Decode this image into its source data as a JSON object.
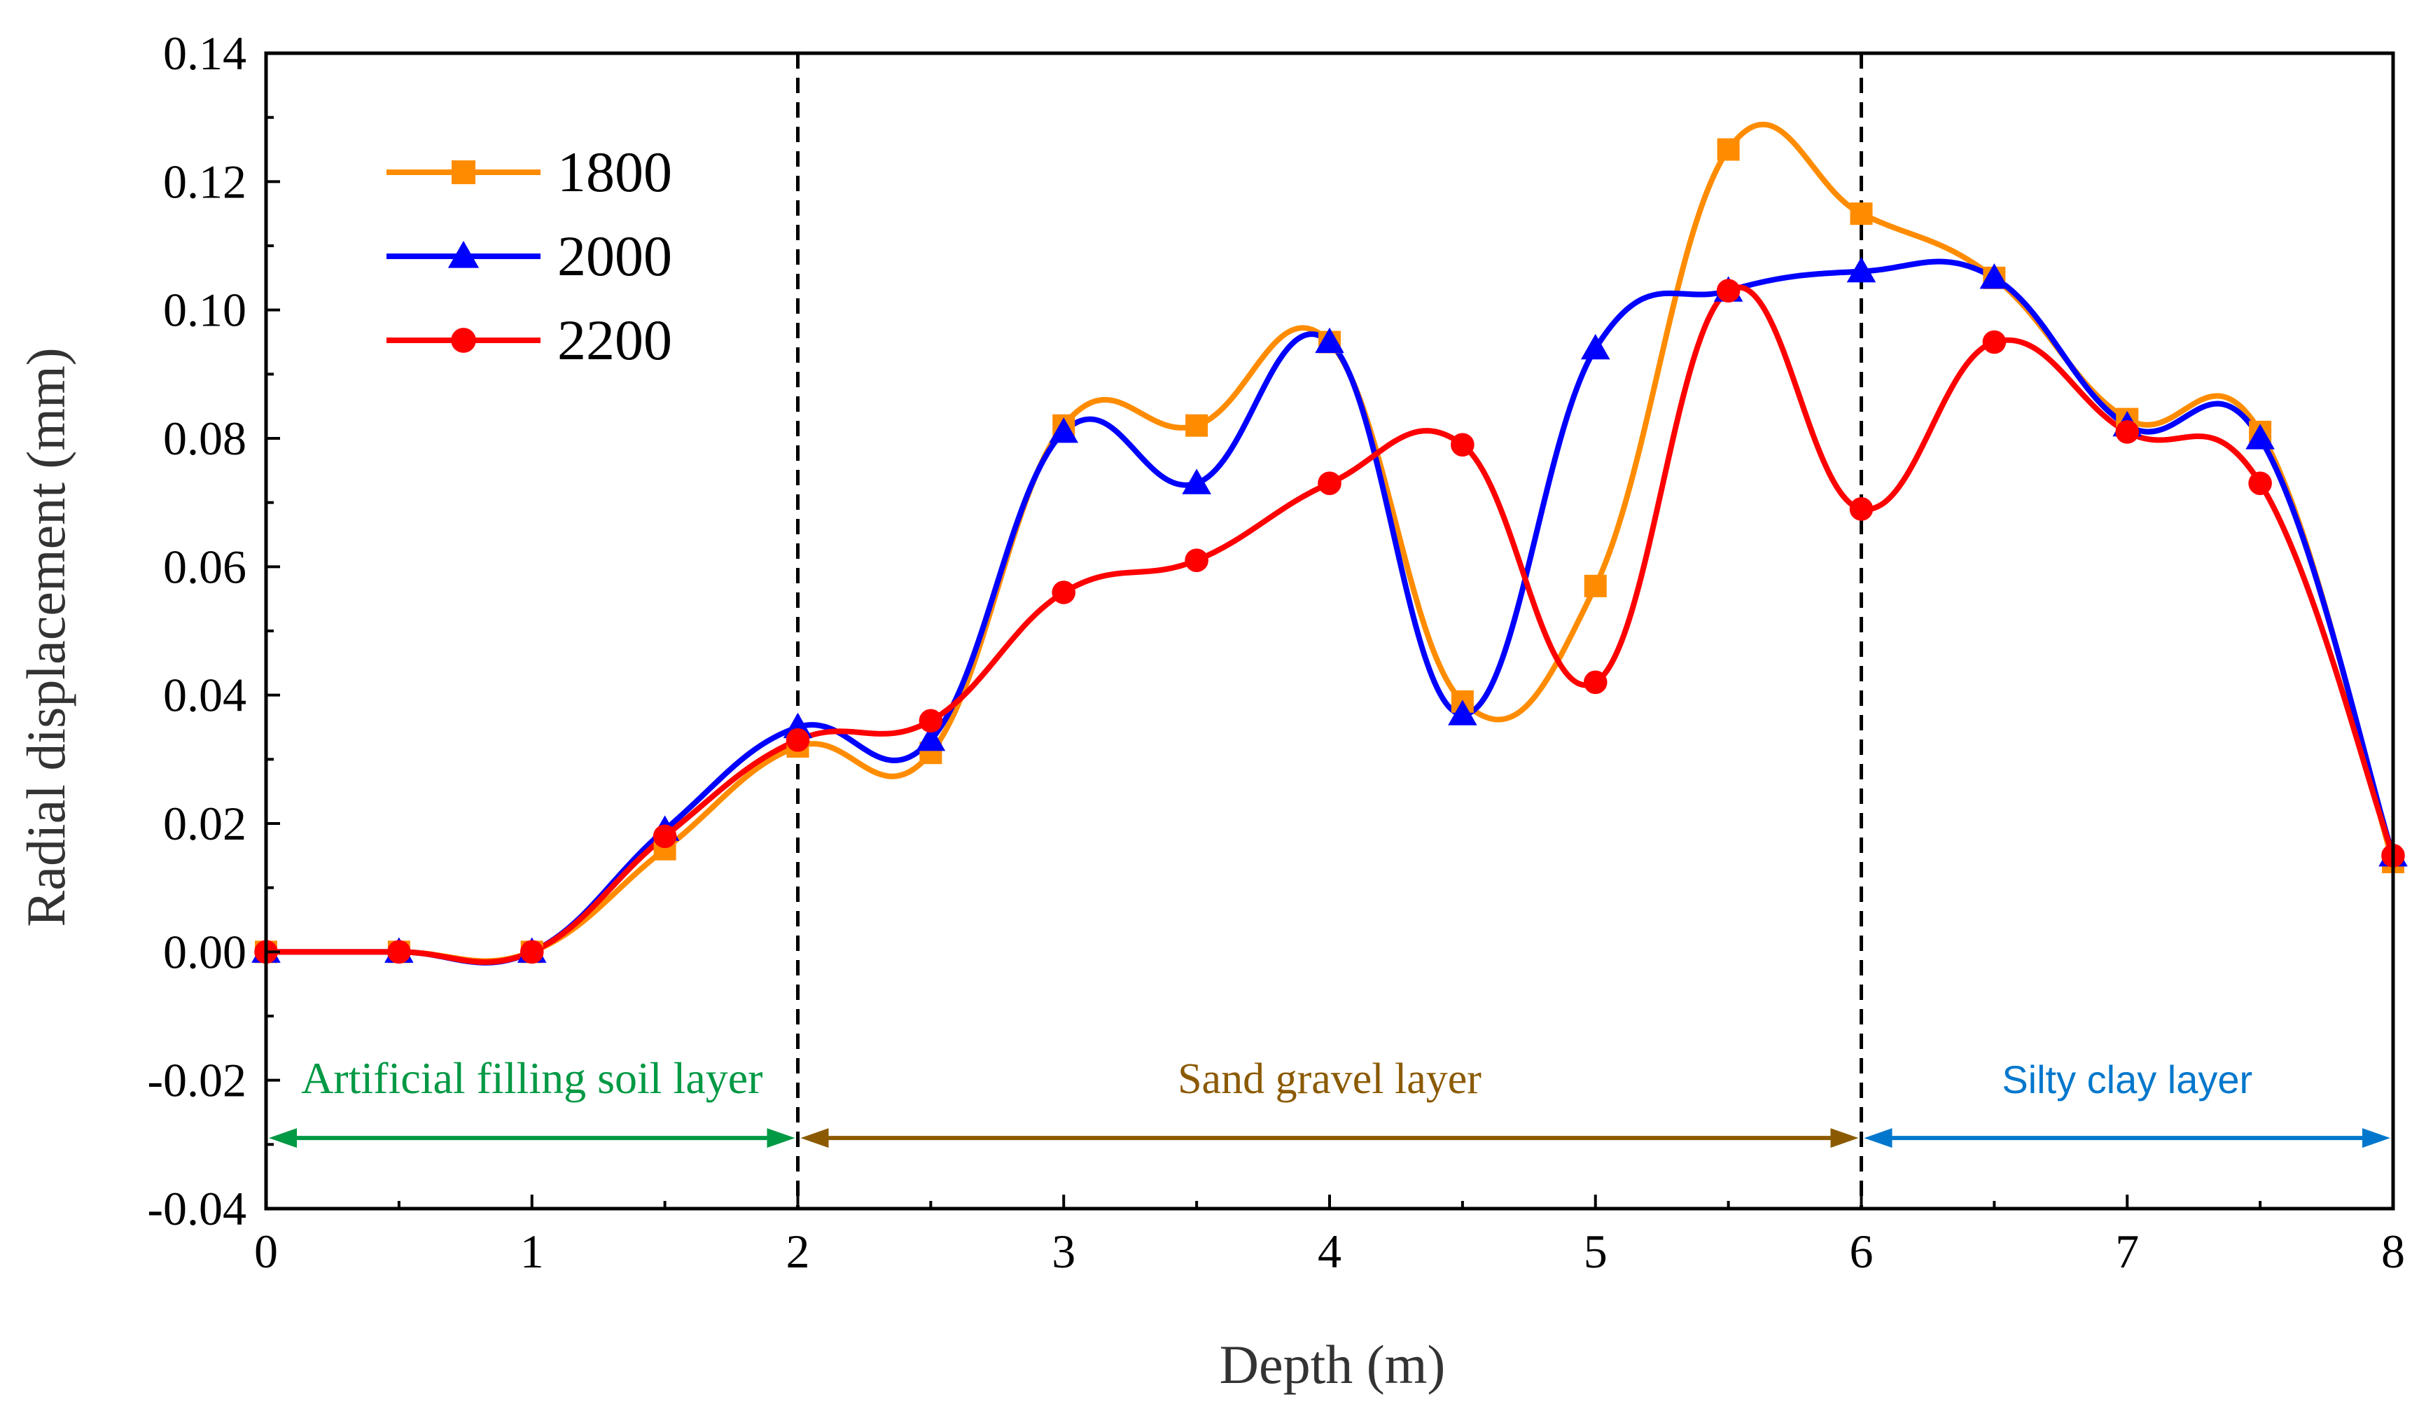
{
  "chart_data": {
    "type": "line",
    "xlabel": "Depth (m)",
    "ylabel": "Radial displacement (mm)",
    "xlim": [
      0,
      8
    ],
    "ylim": [
      -0.04,
      0.14
    ],
    "xticks": [
      "0",
      "1",
      "2",
      "3",
      "4",
      "5",
      "6",
      "7",
      "8"
    ],
    "yticks": [
      "-0.04",
      "-0.02",
      "0.00",
      "0.02",
      "0.04",
      "0.06",
      "0.08",
      "0.10",
      "0.12",
      "0.14"
    ],
    "grid": false,
    "legend_position": "top-left",
    "x": [
      0,
      0.5,
      1,
      1.5,
      2,
      2.5,
      3,
      3.5,
      4,
      4.5,
      5,
      5.5,
      6,
      6.5,
      7,
      7.5,
      8
    ],
    "series": [
      {
        "name": "1800",
        "color": "#FF8C00",
        "marker": "square",
        "values": [
          0.0,
          0.0,
          0.0,
          0.016,
          0.032,
          0.031,
          0.082,
          0.082,
          0.095,
          0.039,
          0.057,
          0.125,
          0.115,
          0.105,
          0.083,
          0.081,
          0.014
        ]
      },
      {
        "name": "2000",
        "color": "#0000FF",
        "marker": "triangle",
        "values": [
          0.0,
          0.0,
          0.0,
          0.019,
          0.035,
          0.033,
          0.081,
          0.073,
          0.095,
          0.037,
          0.094,
          0.103,
          0.106,
          0.105,
          0.082,
          0.08,
          0.015
        ]
      },
      {
        "name": "2200",
        "color": "#FF0000",
        "marker": "circle",
        "values": [
          0.0,
          0.0,
          0.0,
          0.018,
          0.033,
          0.036,
          0.056,
          0.061,
          0.073,
          0.079,
          0.042,
          0.103,
          0.069,
          0.095,
          0.081,
          0.073,
          0.015
        ]
      }
    ],
    "dividers": [
      2,
      6
    ],
    "layers": [
      {
        "label": "Artificial filling soil layer",
        "from": 0,
        "to": 2,
        "color": "#009944"
      },
      {
        "label": "Sand gravel layer",
        "from": 2,
        "to": 6,
        "color": "#8B5A00"
      },
      {
        "label": "Silty clay layer",
        "from": 6,
        "to": 8,
        "color": "#0077CC"
      }
    ],
    "layer_arrow_y": -0.029
  }
}
